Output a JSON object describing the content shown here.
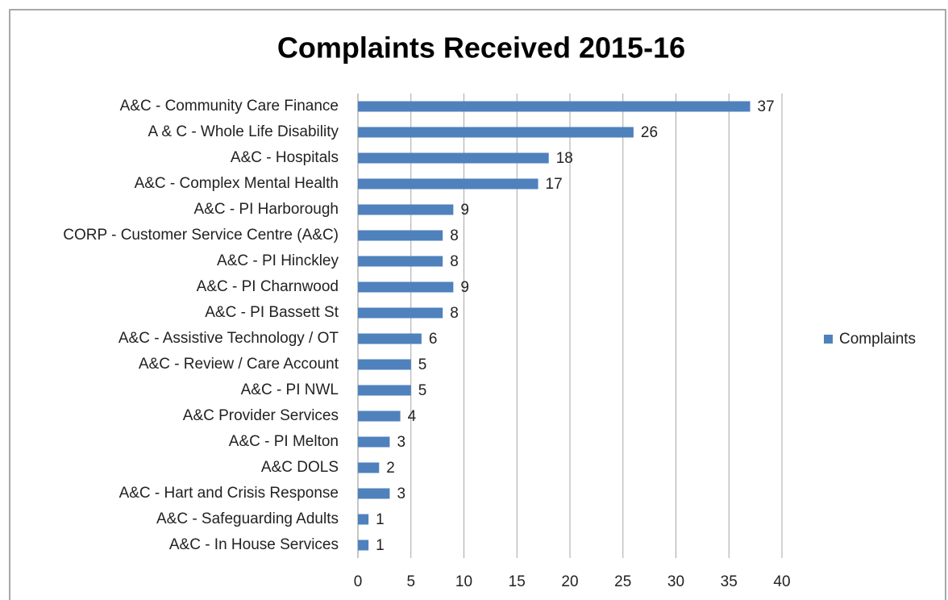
{
  "chart_data": {
    "type": "barh",
    "title": "Complaints Received 2015-16",
    "categories": [
      "A&C - Community Care Finance",
      "A & C - Whole Life Disability",
      "A&C - Hospitals",
      "A&C - Complex Mental Health",
      "A&C - PI Harborough",
      "CORP - Customer Service Centre (A&C)",
      "A&C - PI Hinckley",
      "A&C - PI Charnwood",
      "A&C - PI Bassett St",
      "A&C - Assistive Technology / OT",
      "A&C - Review / Care Account",
      "A&C - PI NWL",
      "A&C Provider Services",
      "A&C - PI Melton",
      "A&C DOLS",
      "A&C - Hart and Crisis Response",
      "A&C - Safeguarding Adults",
      "A&C - In House Services"
    ],
    "series": [
      {
        "name": "Complaints",
        "color": "#4f81bd",
        "values": [
          37,
          26,
          18,
          17,
          9,
          8,
          8,
          9,
          8,
          6,
          5,
          5,
          4,
          3,
          2,
          3,
          1,
          1
        ]
      }
    ],
    "xlim": [
      0,
      40
    ],
    "xticks": [
      0,
      5,
      10,
      15,
      20,
      25,
      30,
      35,
      40
    ],
    "grid": true,
    "legend": "right"
  }
}
